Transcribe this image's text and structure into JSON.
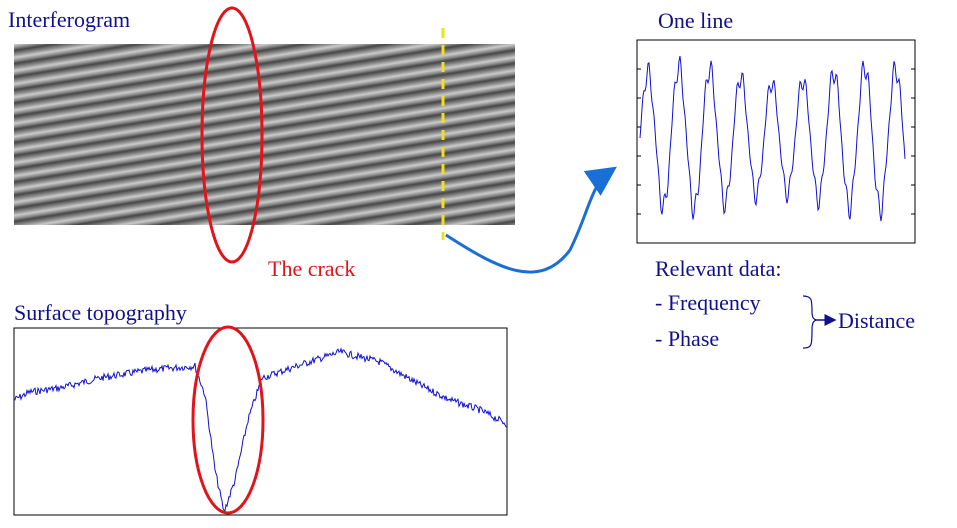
{
  "interferogram": {
    "title": "Interferogram",
    "annotation": "The crack"
  },
  "one_line": {
    "title": "One line"
  },
  "relevant_data": {
    "heading": "Relevant data:",
    "items": [
      "- Frequency",
      "- Phase"
    ],
    "result": "Distance"
  },
  "surface_topography": {
    "title": "Surface topography"
  }
}
